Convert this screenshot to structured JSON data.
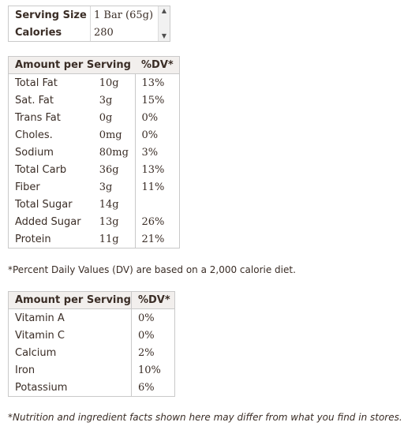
{
  "serving": {
    "rows": [
      {
        "label": "Serving Size",
        "value": "1 Bar (65g)"
      },
      {
        "label": "Calories",
        "value": "280"
      }
    ],
    "scroll_up_icon": "up-arrow",
    "scroll_down_icon": "down-arrow"
  },
  "macros": {
    "header": {
      "amount": "Amount per Serving",
      "dv": "%DV*"
    },
    "rows": [
      {
        "name": "Total Fat",
        "amount": "10g",
        "dv": "13%"
      },
      {
        "name": "Sat. Fat",
        "amount": "3g",
        "dv": "15%"
      },
      {
        "name": "Trans Fat",
        "amount": "0g",
        "dv": "0%"
      },
      {
        "name": "Choles.",
        "amount": "0mg",
        "dv": "0%"
      },
      {
        "name": "Sodium",
        "amount": "80mg",
        "dv": "3%"
      },
      {
        "name": "Total Carb",
        "amount": "36g",
        "dv": "13%"
      },
      {
        "name": "Fiber",
        "amount": "3g",
        "dv": "11%"
      },
      {
        "name": "Total Sugar",
        "amount": "14g",
        "dv": ""
      },
      {
        "name": "Added Sugar",
        "amount": "13g",
        "dv": "26%"
      },
      {
        "name": "Protein",
        "amount": "11g",
        "dv": "21%"
      }
    ]
  },
  "dv_note": "*Percent Daily Values (DV) are based on a 2,000 calorie diet.",
  "vitamins": {
    "header": {
      "amount": "Amount per Serving",
      "dv": "%DV*"
    },
    "rows": [
      {
        "name": "Vitamin A",
        "dv": "0%"
      },
      {
        "name": "Vitamin C",
        "dv": "0%"
      },
      {
        "name": "Calcium",
        "dv": "2%"
      },
      {
        "name": "Iron",
        "dv": "10%"
      },
      {
        "name": "Potassium",
        "dv": "6%"
      }
    ]
  },
  "footer": "*Nutrition and ingredient facts shown here may differ from what you find in stores. I"
}
